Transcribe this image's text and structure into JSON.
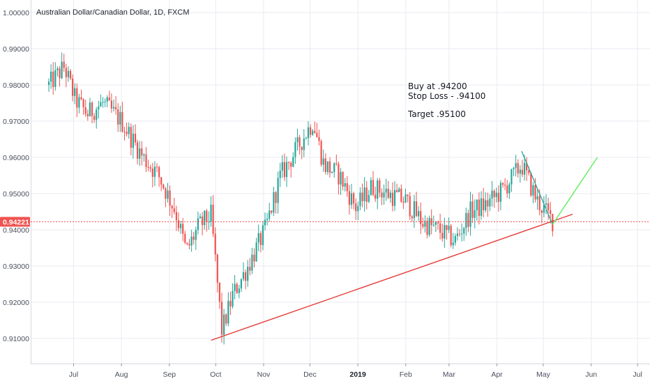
{
  "chart_data": {
    "type": "candlestick",
    "title": "Australian Dollar/Canadian Dollar, 1D, FXCM",
    "ylim": [
      0.9,
      1.0
    ],
    "y_ticks": [
      "1.00000",
      "0.99000",
      "0.98000",
      "0.97000",
      "0.96000",
      "0.95000",
      "0.94000",
      "0.93000",
      "0.92000",
      "0.91000"
    ],
    "x_ticks": [
      {
        "label": "Jul",
        "bold": false
      },
      {
        "label": "Aug",
        "bold": false
      },
      {
        "label": "Sep",
        "bold": false
      },
      {
        "label": "Oct",
        "bold": false
      },
      {
        "label": "Nov",
        "bold": false
      },
      {
        "label": "Dec",
        "bold": false
      },
      {
        "label": "2019",
        "bold": true
      },
      {
        "label": "Feb",
        "bold": false
      },
      {
        "label": "Mar",
        "bold": false
      },
      {
        "label": "Apr",
        "bold": false
      },
      {
        "label": "May",
        "bold": false
      },
      {
        "label": "Jun",
        "bold": false
      },
      {
        "label": "Jul",
        "bold": false
      }
    ],
    "current_price": "0.94221",
    "current_price_value": 0.94221,
    "colors": {
      "up": "#26a69a",
      "down": "#ef5350",
      "trendline": "#e53935",
      "projection_down": "#26a69a",
      "projection_up": "#66ee66",
      "price_line": "#ef5350"
    },
    "grid": true,
    "anchors": [
      [
        "2018-06-15",
        0.98
      ],
      [
        "2018-06-25",
        0.985
      ],
      [
        "2018-07-02",
        0.976
      ],
      [
        "2018-07-10",
        0.972
      ],
      [
        "2018-07-20",
        0.975
      ],
      [
        "2018-08-01",
        0.97
      ],
      [
        "2018-08-15",
        0.96
      ],
      [
        "2018-08-25",
        0.955
      ],
      [
        "2018-09-05",
        0.945
      ],
      [
        "2018-09-12",
        0.934
      ],
      [
        "2018-09-20",
        0.941
      ],
      [
        "2018-09-28",
        0.944
      ],
      [
        "2018-10-05",
        0.912
      ],
      [
        "2018-10-12",
        0.922
      ],
      [
        "2018-10-22",
        0.93
      ],
      [
        "2018-11-02",
        0.94
      ],
      [
        "2018-11-12",
        0.955
      ],
      [
        "2018-11-22",
        0.962
      ],
      [
        "2018-12-03",
        0.97
      ],
      [
        "2018-12-10",
        0.958
      ],
      [
        "2018-12-20",
        0.955
      ],
      [
        "2018-12-31",
        0.946
      ],
      [
        "2019-01-10",
        0.952
      ],
      [
        "2019-01-20",
        0.95
      ],
      [
        "2019-02-01",
        0.948
      ],
      [
        "2019-02-12",
        0.942
      ],
      [
        "2019-02-22",
        0.94
      ],
      [
        "2019-03-05",
        0.937
      ],
      [
        "2019-03-15",
        0.945
      ],
      [
        "2019-03-25",
        0.947
      ],
      [
        "2019-04-05",
        0.951
      ],
      [
        "2019-04-17",
        0.958
      ],
      [
        "2019-04-27",
        0.948
      ],
      [
        "2019-05-08",
        0.942
      ]
    ],
    "trendline": {
      "points": [
        [
          "2018-09-28",
          0.9095
        ],
        [
          "2019-05-20",
          0.9443
        ]
      ]
    },
    "projection": [
      [
        "2019-04-17",
        0.9617
      ],
      [
        "2019-05-07",
        0.9415
      ],
      [
        "2019-06-05",
        0.96
      ]
    ],
    "annotation": {
      "lines": [
        "Buy at .94200",
        "Stop Loss - .94100",
        "",
        "Target .95100"
      ]
    }
  }
}
